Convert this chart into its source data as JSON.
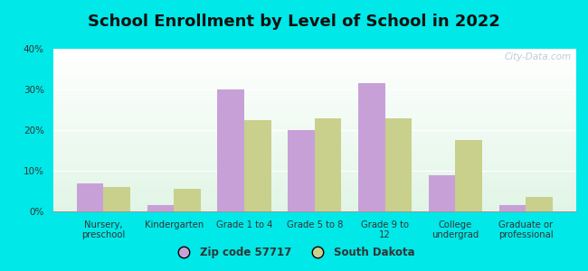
{
  "title": "School Enrollment by Level of School in 2022",
  "categories": [
    "Nursery,\npreschool",
    "Kindergarten",
    "Grade 1 to 4",
    "Grade 5 to 8",
    "Grade 9 to\n12",
    "College\nundergrad",
    "Graduate or\nprofessional"
  ],
  "zip_values": [
    7.0,
    1.5,
    30.0,
    20.0,
    31.5,
    9.0,
    1.5
  ],
  "state_values": [
    6.0,
    5.5,
    22.5,
    23.0,
    23.0,
    17.5,
    3.5
  ],
  "zip_color": "#c8a0d8",
  "state_color": "#c8d08c",
  "ylim": [
    0,
    40
  ],
  "yticks": [
    0,
    10,
    20,
    30,
    40
  ],
  "background_outer": "#00e8e8",
  "legend_zip": "Zip code 57717",
  "legend_state": "South Dakota",
  "title_fontsize": 13,
  "watermark": "City-Data.com"
}
